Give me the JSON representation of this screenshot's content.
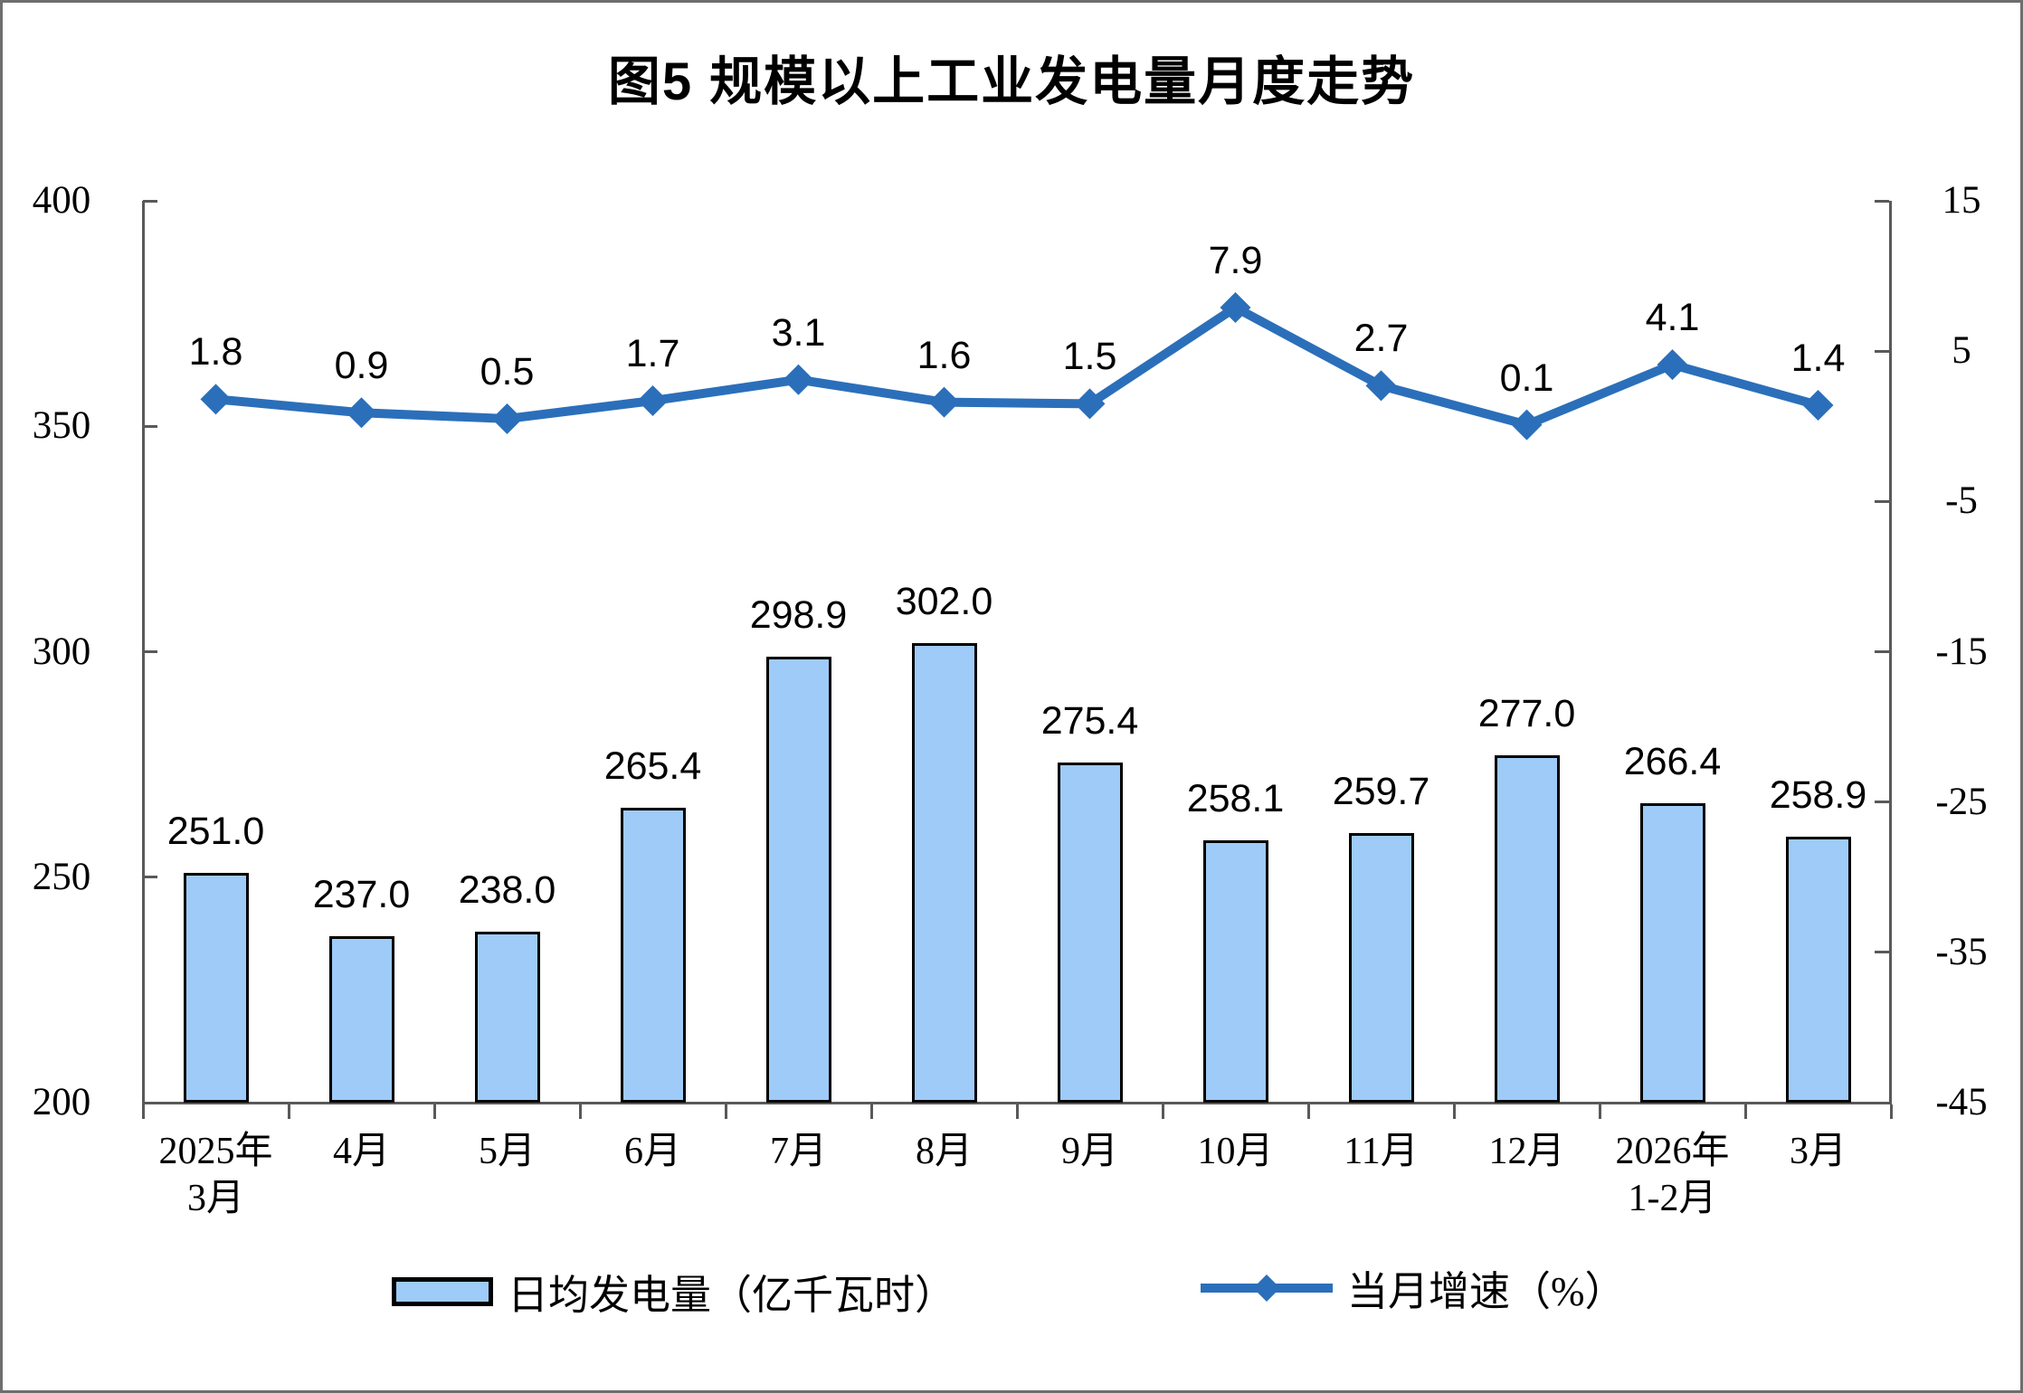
{
  "chart_data": {
    "type": "combo-bar-line",
    "title": "图5 规模以上工业发电量月度走势",
    "categories": [
      [
        "2025年",
        "3月"
      ],
      [
        "4月"
      ],
      [
        "5月"
      ],
      [
        "6月"
      ],
      [
        "7月"
      ],
      [
        "8月"
      ],
      [
        "9月"
      ],
      [
        "10月"
      ],
      [
        "11月"
      ],
      [
        "12月"
      ],
      [
        "2026年",
        "1-2月"
      ],
      [
        "3月"
      ]
    ],
    "series": [
      {
        "name": "日均发电量（亿千瓦时）",
        "type": "bar",
        "axis": "left",
        "values": [
          251.0,
          237.0,
          238.0,
          265.4,
          298.9,
          302.0,
          275.4,
          258.1,
          259.7,
          277.0,
          266.4,
          258.9
        ],
        "labels": [
          "251.0",
          "237.0",
          "238.0",
          "265.4",
          "298.9",
          "302.0",
          "275.4",
          "258.1",
          "259.7",
          "277.0",
          "266.4",
          "258.9"
        ],
        "fill_color": "#9ECBF8",
        "stroke_color": "#000000"
      },
      {
        "name": "当月增速（%）",
        "type": "line",
        "axis": "right",
        "values": [
          1.8,
          0.9,
          0.5,
          1.7,
          3.1,
          1.6,
          1.5,
          7.9,
          2.7,
          0.1,
          4.1,
          1.4
        ],
        "labels": [
          "1.8",
          "0.9",
          "0.5",
          "1.7",
          "3.1",
          "1.6",
          "1.5",
          "7.9",
          "2.7",
          "0.1",
          "4.1",
          "1.4"
        ],
        "line_color": "#2B6FBA"
      }
    ],
    "left_axis": {
      "min": 200,
      "max": 400,
      "ticks": [
        400,
        350,
        300,
        250,
        200
      ]
    },
    "right_axis": {
      "min": -45,
      "max": 15,
      "ticks": [
        15,
        5,
        -5,
        -15,
        -25,
        -35,
        -45
      ]
    },
    "legend": [
      {
        "label": "日均发电量（亿千瓦时）",
        "swatch": "bar"
      },
      {
        "label": "当月增速（%）",
        "swatch": "line"
      }
    ],
    "grid": false,
    "legend_position": "bottom",
    "axis_color": "#595959"
  }
}
